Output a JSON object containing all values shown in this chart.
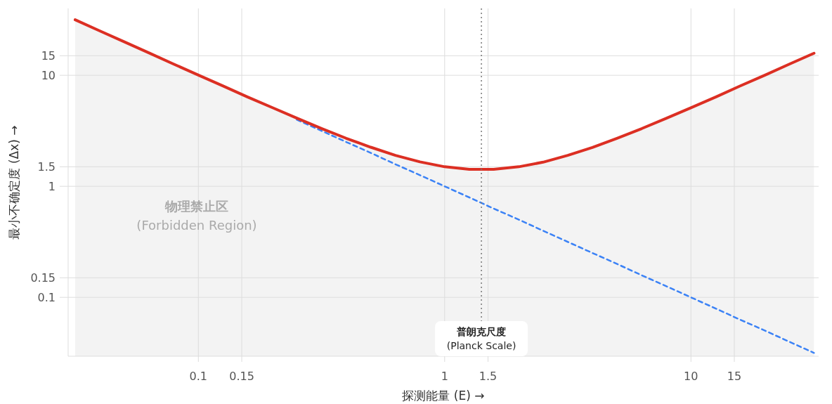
{
  "chart_data": {
    "type": "line",
    "xlabel": "探测能量 (E) →",
    "ylabel": "最小不确定度 (Δx) →",
    "log": "xy",
    "grid": true,
    "xlim": [
      0.0296,
      33
    ],
    "ylim": [
      0.0295,
      40
    ],
    "xticks": [
      0.1,
      0.15,
      1,
      1.5,
      10,
      15
    ],
    "yticks": [
      0.1,
      0.15,
      1,
      1.5,
      10,
      15
    ],
    "x": [
      0.0316,
      0.0398,
      0.0501,
      0.0631,
      0.0794,
      0.1,
      0.126,
      0.158,
      0.2,
      0.251,
      0.316,
      0.398,
      0.501,
      0.631,
      0.794,
      1,
      1.26,
      1.58,
      2,
      2.51,
      3.16,
      3.98,
      5.01,
      6.31,
      7.94,
      10,
      12.6,
      15.8,
      20,
      25.1,
      31.6
    ],
    "series": [
      {
        "color": "#3b82f6",
        "line_style": "dashed",
        "values": [
          null,
          null,
          null,
          null,
          null,
          null,
          null,
          null,
          null,
          3.98,
          3.16,
          2.51,
          2,
          1.58,
          1.26,
          1,
          0.794,
          0.631,
          0.501,
          0.398,
          0.316,
          0.251,
          0.2,
          0.158,
          0.126,
          0.1,
          0.0794,
          0.0631,
          0.0501,
          0.0398,
          0.0316
        ]
      },
      {
        "type": "area",
        "color": "#dc2f23",
        "line_style": "solid",
        "values": [
          31.6,
          25.1,
          20,
          15.9,
          12.6,
          10.05,
          8.01,
          6.39,
          5.11,
          4.11,
          3.32,
          2.71,
          2.25,
          1.9,
          1.66,
          1.5,
          1.42,
          1.42,
          1.5,
          1.65,
          1.9,
          2.24,
          2.71,
          3.31,
          4.1,
          5.1,
          6.37,
          7.99,
          10.03,
          12.6,
          15.8
        ]
      }
    ],
    "ref_lines": [
      {
        "axis": "x",
        "value": 1.41,
        "label": "普朗克尺度\n(Planck Scale)",
        "color": "#777777",
        "line_style": "dotted"
      }
    ],
    "annotations": [
      "物理禁止区\n(Forbidden Region)"
    ]
  }
}
